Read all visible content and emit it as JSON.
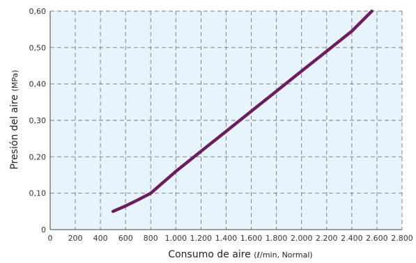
{
  "chart_data": {
    "type": "line",
    "xlabel": "Consumo de aire",
    "xlabel_unit": "(ℓ/min, Normal)",
    "ylabel": "Presión del aire",
    "ylabel_unit": "(MPa)",
    "xlim": [
      0,
      2800
    ],
    "ylim": [
      0,
      0.6
    ],
    "x_ticks": [
      0,
      200,
      400,
      600,
      800,
      1000,
      1200,
      1400,
      1600,
      1800,
      2000,
      2200,
      2400,
      2600,
      2800
    ],
    "x_tick_labels": [
      "0",
      "200",
      "400",
      "600",
      "800",
      "1.000",
      "1.200",
      "1.400",
      "1.600",
      "1.800",
      "2.000",
      "2.200",
      "2.400",
      "2.600",
      "2.800"
    ],
    "y_ticks": [
      0,
      0.1,
      0.2,
      0.3,
      0.4,
      0.5,
      0.6
    ],
    "y_tick_labels": [
      "0",
      "0,10",
      "0,20",
      "0,30",
      "0,40",
      "0,50",
      "0,60"
    ],
    "grid": true,
    "grid_style": "dashed",
    "background_color": "#e8f4fb",
    "grid_color": "#7a7a7a",
    "line_color": "#6b1d5e",
    "series": [
      {
        "x": [
          500,
          600,
          700,
          800,
          1000,
          1200,
          1400,
          1600,
          1800,
          2000,
          2200,
          2400,
          2560
        ],
        "y": [
          0.05,
          0.065,
          0.082,
          0.1,
          0.16,
          0.215,
          0.27,
          0.325,
          0.38,
          0.435,
          0.49,
          0.545,
          0.6
        ]
      }
    ]
  }
}
